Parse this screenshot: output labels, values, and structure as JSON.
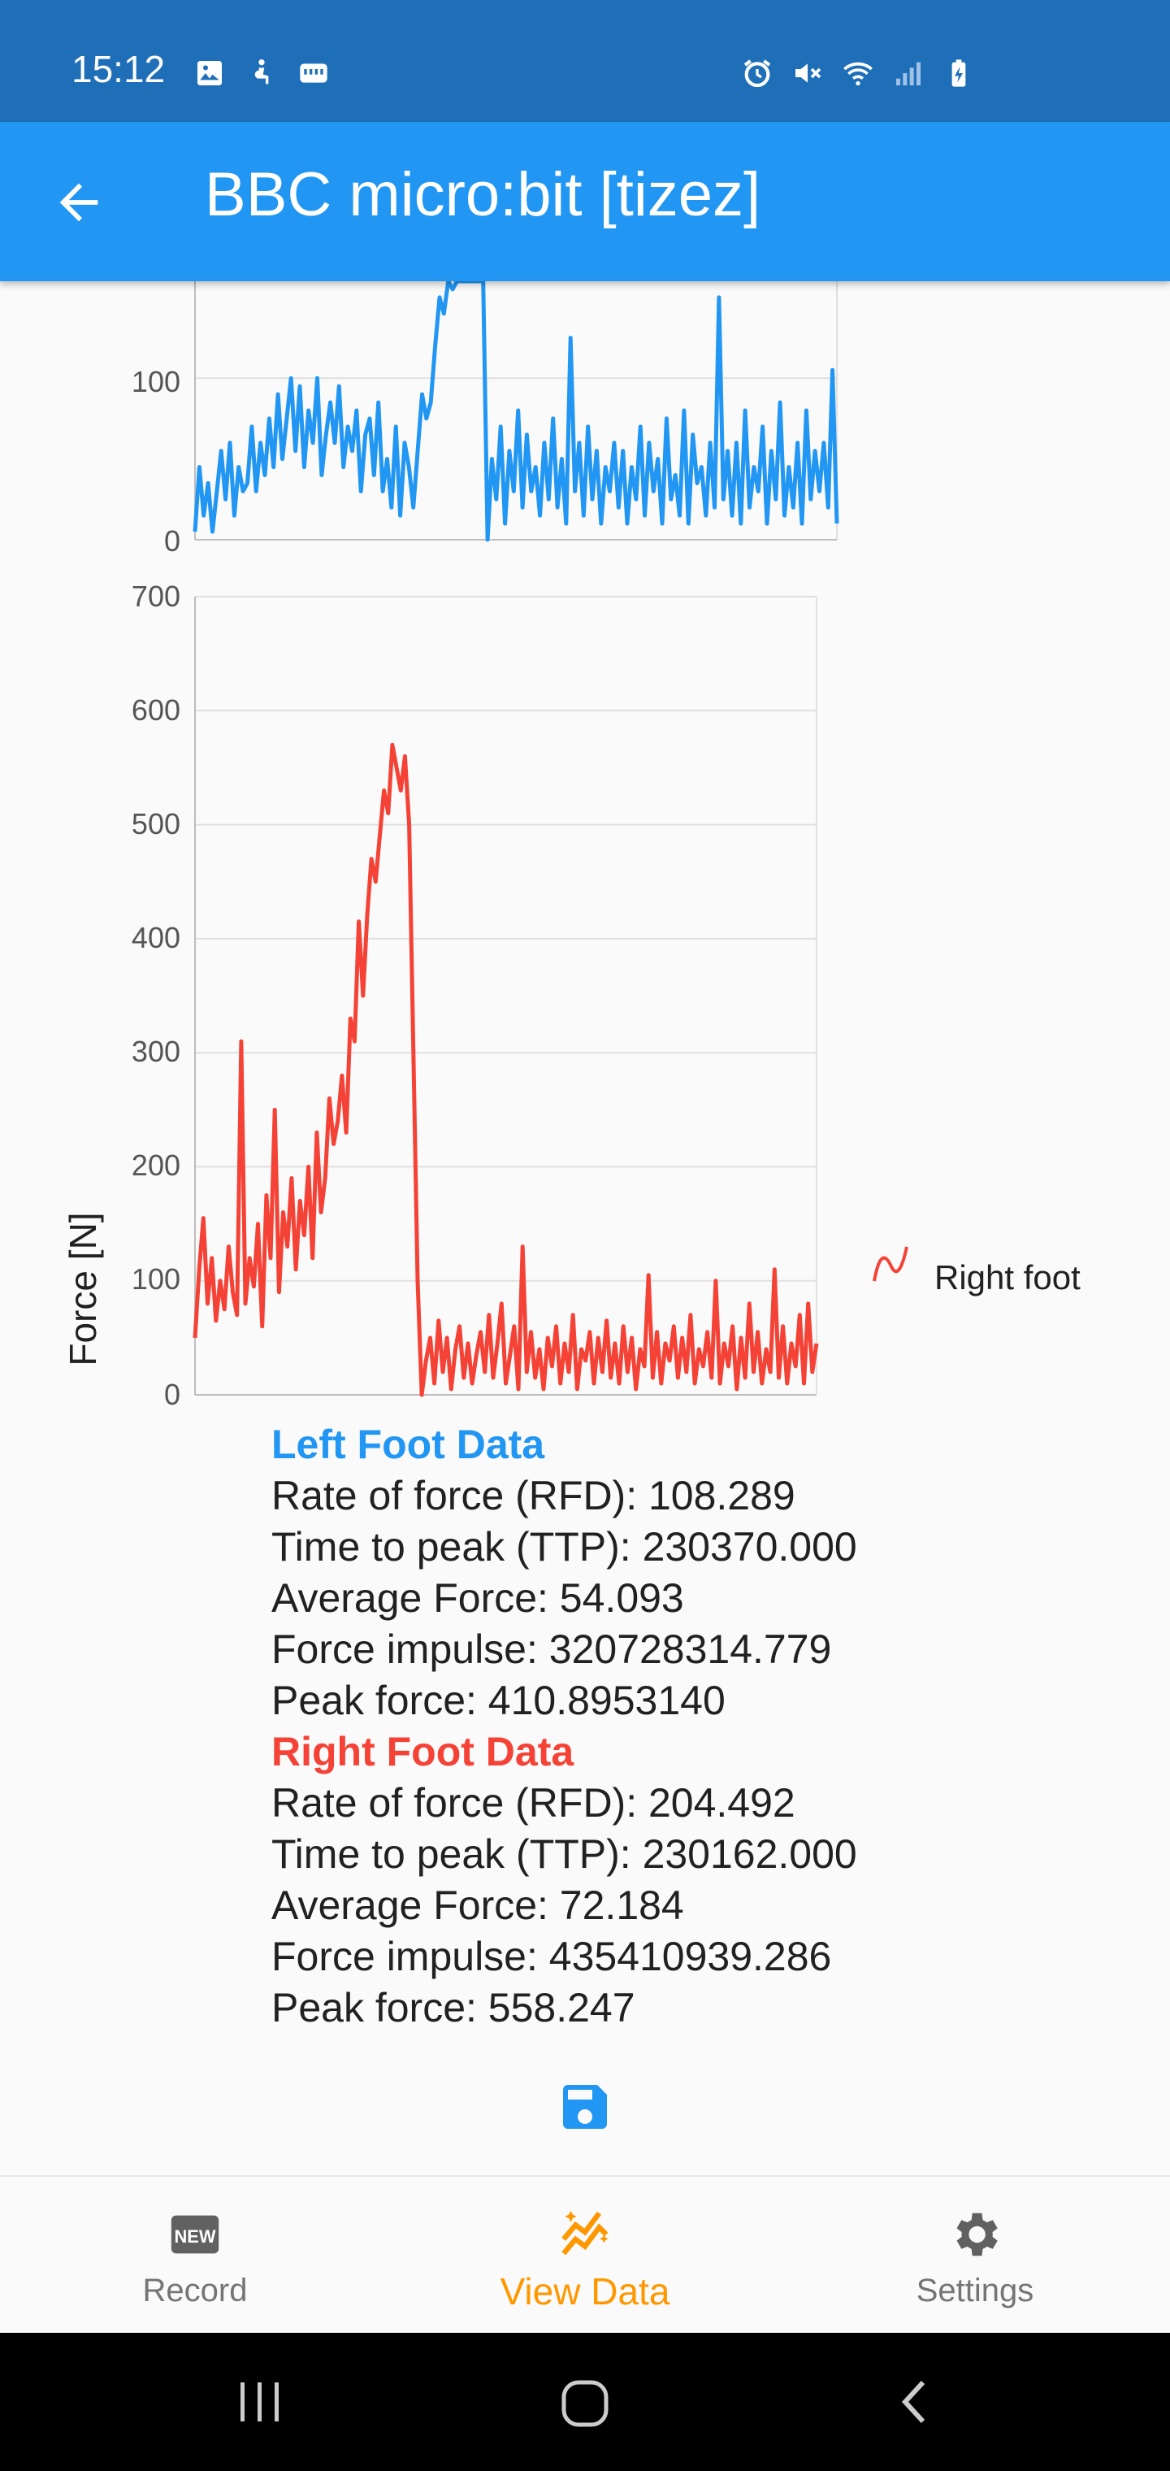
{
  "status_bar": {
    "time": "15:12",
    "left_icons": [
      "image-icon",
      "accessibility-icon",
      "storage-icon"
    ],
    "right_icons": [
      "alarm-icon",
      "mute-icon",
      "wifi-icon",
      "signal-icon",
      "battery-charging-icon"
    ]
  },
  "app_bar": {
    "title": "BBC micro:bit [tizez]",
    "back_icon": "arrow-back-icon",
    "color": "#2196f3"
  },
  "charts": {
    "left": {
      "y_ticks": [
        "100",
        "0"
      ],
      "color": "#2196f3"
    },
    "right": {
      "ylabel": "Force [N]",
      "y_ticks": [
        "700",
        "600",
        "500",
        "400",
        "300",
        "200",
        "100",
        "0"
      ],
      "legend": "Right foot",
      "color": "#f44336"
    }
  },
  "chart_data": [
    {
      "type": "line",
      "title": "",
      "xlabel": "",
      "ylabel": "",
      "ylim": [
        0,
        160
      ],
      "grid": true,
      "series": [
        {
          "values": [
            5,
            45,
            15,
            35,
            5,
            30,
            55,
            25,
            60,
            15,
            45,
            30,
            35,
            70,
            30,
            60,
            40,
            75,
            45,
            90,
            50,
            75,
            100,
            55,
            95,
            45,
            80,
            60,
            100,
            40,
            65,
            85,
            60,
            95,
            45,
            70,
            55,
            80,
            30,
            65,
            75,
            40,
            85,
            30,
            50,
            20,
            70,
            15,
            60,
            45,
            20,
            55,
            90,
            75,
            85,
            120,
            150,
            140,
            160,
            155,
            160,
            160,
            160,
            160,
            160,
            160,
            160,
            0,
            50,
            25,
            70,
            10,
            55,
            30,
            80,
            20,
            65,
            30,
            45,
            15,
            60,
            25,
            75,
            20,
            50,
            10,
            125,
            30,
            60,
            15,
            70,
            25,
            55,
            10,
            45,
            30,
            60,
            20,
            55,
            10,
            45,
            25,
            70,
            15,
            60,
            30,
            50,
            10,
            75,
            25,
            40,
            15,
            80,
            10,
            65,
            35,
            45,
            15,
            60,
            20,
            150,
            25,
            55,
            15,
            60,
            10,
            80,
            20,
            45,
            30,
            70,
            10,
            55,
            25,
            85,
            15,
            45,
            20,
            60,
            10,
            80,
            25,
            55,
            30,
            60,
            20,
            105,
            10
          ]
        }
      ]
    },
    {
      "type": "line",
      "title": "",
      "xlabel": "",
      "ylabel": "Force [N]",
      "ylim": [
        0,
        700
      ],
      "grid": true,
      "legend_position": "right",
      "series": [
        {
          "name": "Right foot",
          "values": [
            50,
            110,
            155,
            80,
            120,
            65,
            100,
            75,
            130,
            90,
            70,
            310,
            80,
            120,
            95,
            150,
            60,
            175,
            120,
            250,
            90,
            160,
            130,
            190,
            110,
            170,
            140,
            200,
            120,
            230,
            160,
            190,
            260,
            220,
            240,
            280,
            230,
            330,
            310,
            415,
            350,
            420,
            470,
            450,
            490,
            530,
            510,
            570,
            550,
            530,
            560,
            500,
            300,
            100,
            0,
            30,
            50,
            10,
            65,
            20,
            50,
            5,
            40,
            60,
            15,
            45,
            10,
            35,
            55,
            20,
            70,
            15,
            45,
            80,
            10,
            35,
            60,
            5,
            130,
            20,
            55,
            15,
            40,
            5,
            50,
            25,
            60,
            10,
            45,
            20,
            70,
            5,
            40,
            30,
            55,
            10,
            50,
            20,
            65,
            15,
            45,
            10,
            60,
            20,
            50,
            5,
            40,
            25,
            105,
            15,
            55,
            10,
            45,
            30,
            60,
            15,
            50,
            20,
            70,
            10,
            40,
            25,
            55,
            15,
            100,
            10,
            45,
            25,
            60,
            5,
            50,
            15,
            80,
            20,
            55,
            10,
            40,
            20,
            110,
            15,
            60,
            10,
            45,
            25,
            70,
            10,
            80,
            20,
            45
          ]
        }
      ]
    }
  ],
  "left_foot": {
    "heading": "Left Foot Data",
    "rfd": "Rate of force (RFD): 108.289",
    "ttp": "Time to peak (TTP): 230370.000",
    "avg": "Average Force: 54.093",
    "impulse": "Force impulse: 320728314.779",
    "peak": "Peak force: 410.8953140"
  },
  "right_foot": {
    "heading": "Right Foot Data",
    "rfd": "Rate of force (RFD): 204.492",
    "ttp": "Time to peak (TTP): 230162.000",
    "avg": "Average Force: 72.184",
    "impulse": "Force impulse: 435410939.286",
    "peak": "Peak force: 558.247"
  },
  "save_icon": "save-icon",
  "bottom_nav": {
    "items": [
      {
        "label": "Record",
        "icon": "new-badge-icon"
      },
      {
        "label": "View Data",
        "icon": "chart-sparkle-icon"
      },
      {
        "label": "Settings",
        "icon": "gear-icon"
      }
    ],
    "active_index": 1,
    "active_color": "#ff9800"
  }
}
